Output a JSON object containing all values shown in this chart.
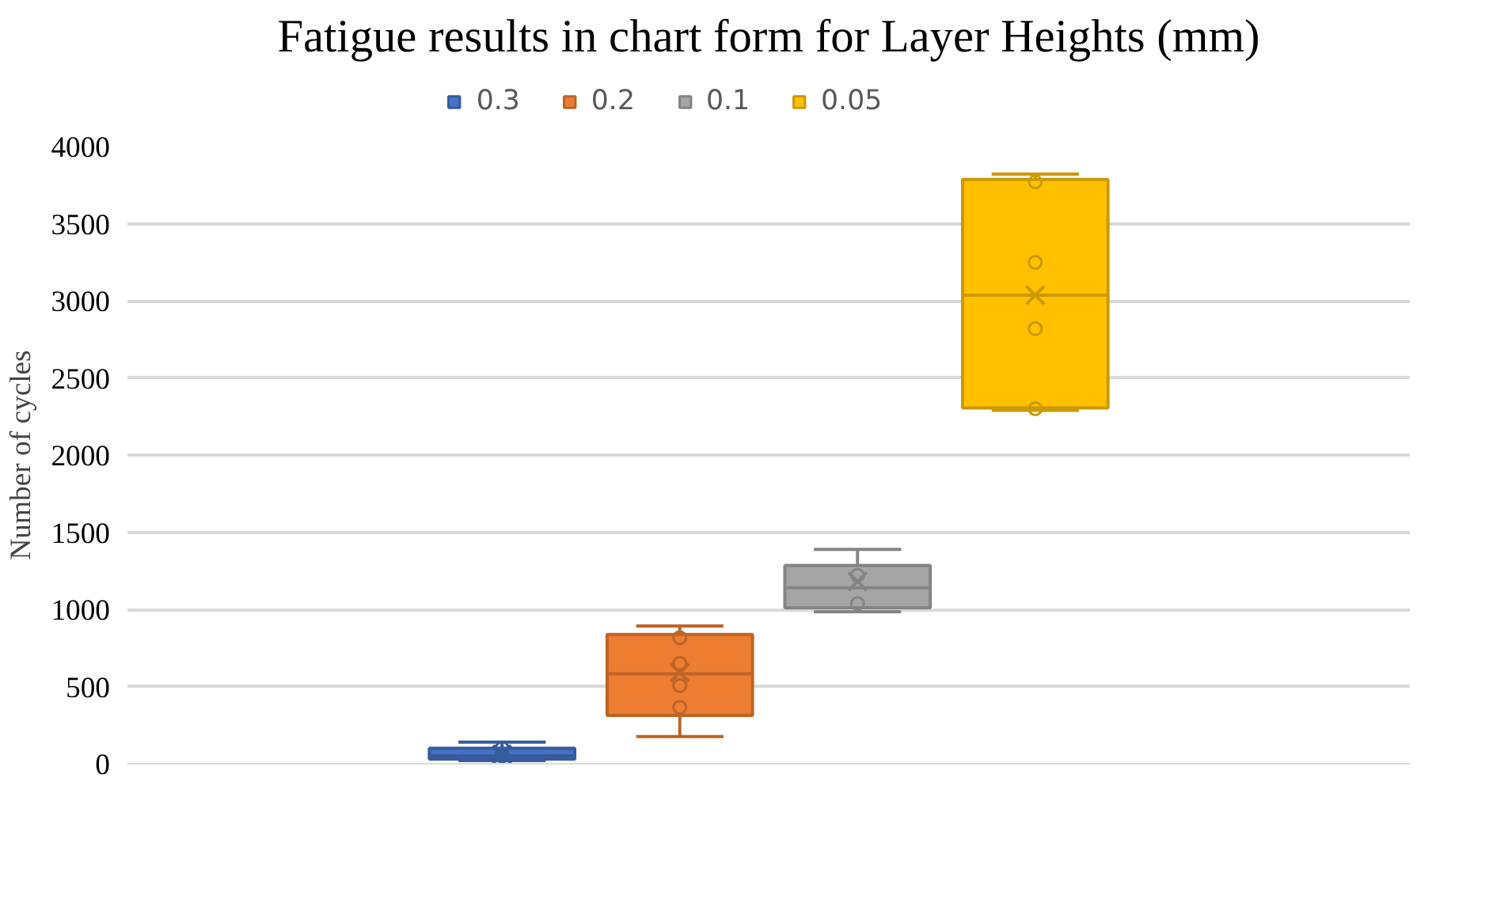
{
  "chart_data": {
    "type": "box",
    "title": "Fatigue results in chart form for Layer Heights (mm)",
    "ylabel": "Number of cycles",
    "categories": [
      null
    ],
    "ylim": [
      0,
      4000
    ],
    "yticks": [
      0,
      500,
      1000,
      1500,
      2000,
      2500,
      3000,
      3500,
      4000
    ],
    "grid": "y",
    "legend": "top",
    "series": [
      {
        "name": "0.3",
        "color": "#4472c4",
        "boxes": [
          {
            "low": 20,
            "q1": 30,
            "median": 50,
            "q3": 100,
            "high": 140,
            "mean": 60
          }
        ]
      },
      {
        "type": "scatter",
        "color": "#365b9d",
        "x": [
          null,
          null
        ],
        "values": [
          50,
          100
        ]
      },
      {
        "name": "0.2",
        "color": "#ed7d31",
        "boxes": [
          {
            "low": 176,
            "q1": 313,
            "median": 582,
            "q3": 837,
            "high": 892,
            "mean": 590
          }
        ]
      },
      {
        "type": "scatter",
        "color": "#bd6427",
        "x": [
          null,
          null,
          null,
          null
        ],
        "values": [
          365,
          506,
          650,
          817
        ]
      },
      {
        "name": "0.1",
        "color": "#a5a5a5",
        "boxes": [
          {
            "low": 985,
            "q1": 1010,
            "median": 1140,
            "q3": 1285,
            "high": 1388,
            "mean": 1181
          }
        ]
      },
      {
        "type": "scatter",
        "color": "#848484",
        "x": [
          null,
          null
        ],
        "values": [
          1037,
          1220
        ]
      },
      {
        "name": "0.05",
        "color": "#ffc000",
        "boxes": [
          {
            "low": 2290,
            "q1": 2305,
            "median": 3036,
            "q3": 3786,
            "high": 3821,
            "mean": 3036
          }
        ]
      },
      {
        "type": "scatter",
        "color": "#cc9900",
        "x": [
          null,
          null,
          null,
          null
        ],
        "values": [
          2300,
          2819,
          3249,
          3770
        ]
      }
    ]
  }
}
